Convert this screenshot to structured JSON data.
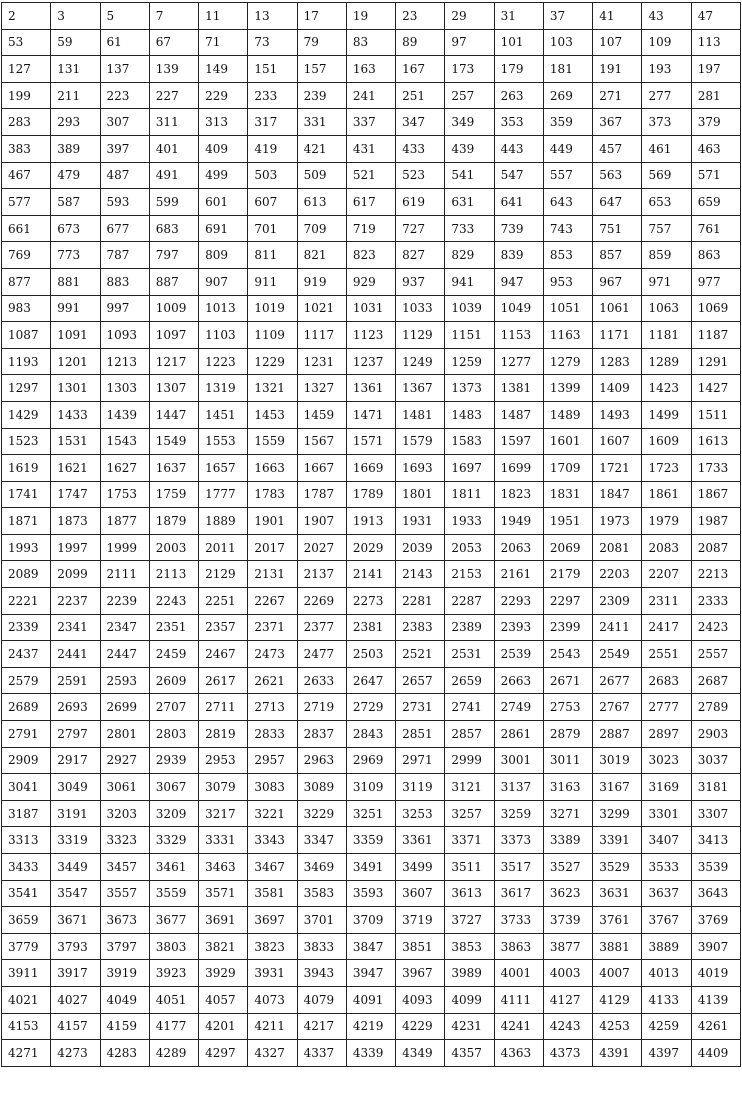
{
  "table": {
    "rows": [
      [
        "2",
        "3",
        "5",
        "7",
        "11",
        "13",
        "17",
        "19",
        "23",
        "29",
        "31",
        "37",
        "41",
        "43",
        "47"
      ],
      [
        "53",
        "59",
        "61",
        "67",
        "71",
        "73",
        "79",
        "83",
        "89",
        "97",
        "101",
        "103",
        "107",
        "109",
        "113"
      ],
      [
        "127",
        "131",
        "137",
        "139",
        "149",
        "151",
        "157",
        "163",
        "167",
        "173",
        "179",
        "181",
        "191",
        "193",
        "197"
      ],
      [
        "199",
        "211",
        "223",
        "227",
        "229",
        "233",
        "239",
        "241",
        "251",
        "257",
        "263",
        "269",
        "271",
        "277",
        "281"
      ],
      [
        "283",
        "293",
        "307",
        "311",
        "313",
        "317",
        "331",
        "337",
        "347",
        "349",
        "353",
        "359",
        "367",
        "373",
        "379"
      ],
      [
        "383",
        "389",
        "397",
        "401",
        "409",
        "419",
        "421",
        "431",
        "433",
        "439",
        "443",
        "449",
        "457",
        "461",
        "463"
      ],
      [
        "467",
        "479",
        "487",
        "491",
        "499",
        "503",
        "509",
        "521",
        "523",
        "541",
        "547",
        "557",
        "563",
        "569",
        "571"
      ],
      [
        "577",
        "587",
        "593",
        "599",
        "601",
        "607",
        "613",
        "617",
        "619",
        "631",
        "641",
        "643",
        "647",
        "653",
        "659"
      ],
      [
        "661",
        "673",
        "677",
        "683",
        "691",
        "701",
        "709",
        "719",
        "727",
        "733",
        "739",
        "743",
        "751",
        "757",
        "761"
      ],
      [
        "769",
        "773",
        "787",
        "797",
        "809",
        "811",
        "821",
        "823",
        "827",
        "829",
        "839",
        "853",
        "857",
        "859",
        "863"
      ],
      [
        "877",
        "881",
        "883",
        "887",
        "907",
        "911",
        "919",
        "929",
        "937",
        "941",
        "947",
        "953",
        "967",
        "971",
        "977"
      ],
      [
        "983",
        "991",
        "997",
        "1009",
        "1013",
        "1019",
        "1021",
        "1031",
        "1033",
        "1039",
        "1049",
        "1051",
        "1061",
        "1063",
        "1069"
      ],
      [
        "1087",
        "1091",
        "1093",
        "1097",
        "1103",
        "1109",
        "1117",
        "1123",
        "1129",
        "1151",
        "1153",
        "1163",
        "1171",
        "1181",
        "1187"
      ],
      [
        "1193",
        "1201",
        "1213",
        "1217",
        "1223",
        "1229",
        "1231",
        "1237",
        "1249",
        "1259",
        "1277",
        "1279",
        "1283",
        "1289",
        "1291"
      ],
      [
        "1297",
        "1301",
        "1303",
        "1307",
        "1319",
        "1321",
        "1327",
        "1361",
        "1367",
        "1373",
        "1381",
        "1399",
        "1409",
        "1423",
        "1427"
      ],
      [
        "1429",
        "1433",
        "1439",
        "1447",
        "1451",
        "1453",
        "1459",
        "1471",
        "1481",
        "1483",
        "1487",
        "1489",
        "1493",
        "1499",
        "1511"
      ],
      [
        "1523",
        "1531",
        "1543",
        "1549",
        "1553",
        "1559",
        "1567",
        "1571",
        "1579",
        "1583",
        "1597",
        "1601",
        "1607",
        "1609",
        "1613"
      ],
      [
        "1619",
        "1621",
        "1627",
        "1637",
        "1657",
        "1663",
        "1667",
        "1669",
        "1693",
        "1697",
        "1699",
        "1709",
        "1721",
        "1723",
        "1733"
      ],
      [
        "1741",
        "1747",
        "1753",
        "1759",
        "1777",
        "1783",
        "1787",
        "1789",
        "1801",
        "1811",
        "1823",
        "1831",
        "1847",
        "1861",
        "1867"
      ],
      [
        "1871",
        "1873",
        "1877",
        "1879",
        "1889",
        "1901",
        "1907",
        "1913",
        "1931",
        "1933",
        "1949",
        "1951",
        "1973",
        "1979",
        "1987"
      ],
      [
        "1993",
        "1997",
        "1999",
        "2003",
        "2011",
        "2017",
        "2027",
        "2029",
        "2039",
        "2053",
        "2063",
        "2069",
        "2081",
        "2083",
        "2087"
      ],
      [
        "2089",
        "2099",
        "2111",
        "2113",
        "2129",
        "2131",
        "2137",
        "2141",
        "2143",
        "2153",
        "2161",
        "2179",
        "2203",
        "2207",
        "2213"
      ],
      [
        "2221",
        "2237",
        "2239",
        "2243",
        "2251",
        "2267",
        "2269",
        "2273",
        "2281",
        "2287",
        "2293",
        "2297",
        "2309",
        "2311",
        "2333"
      ],
      [
        "2339",
        "2341",
        "2347",
        "2351",
        "2357",
        "2371",
        "2377",
        "2381",
        "2383",
        "2389",
        "2393",
        "2399",
        "2411",
        "2417",
        "2423"
      ],
      [
        "2437",
        "2441",
        "2447",
        "2459",
        "2467",
        "2473",
        "2477",
        "2503",
        "2521",
        "2531",
        "2539",
        "2543",
        "2549",
        "2551",
        "2557"
      ],
      [
        "2579",
        "2591",
        "2593",
        "2609",
        "2617",
        "2621",
        "2633",
        "2647",
        "2657",
        "2659",
        "2663",
        "2671",
        "2677",
        "2683",
        "2687"
      ],
      [
        "2689",
        "2693",
        "2699",
        "2707",
        "2711",
        "2713",
        "2719",
        "2729",
        "2731",
        "2741",
        "2749",
        "2753",
        "2767",
        "2777",
        "2789"
      ],
      [
        "2791",
        "2797",
        "2801",
        "2803",
        "2819",
        "2833",
        "2837",
        "2843",
        "2851",
        "2857",
        "2861",
        "2879",
        "2887",
        "2897",
        "2903"
      ],
      [
        "2909",
        "2917",
        "2927",
        "2939",
        "2953",
        "2957",
        "2963",
        "2969",
        "2971",
        "2999",
        "3001",
        "3011",
        "3019",
        "3023",
        "3037"
      ],
      [
        "3041",
        "3049",
        "3061",
        "3067",
        "3079",
        "3083",
        "3089",
        "3109",
        "3119",
        "3121",
        "3137",
        "3163",
        "3167",
        "3169",
        "3181"
      ],
      [
        "3187",
        "3191",
        "3203",
        "3209",
        "3217",
        "3221",
        "3229",
        "3251",
        "3253",
        "3257",
        "3259",
        "3271",
        "3299",
        "3301",
        "3307"
      ],
      [
        "3313",
        "3319",
        "3323",
        "3329",
        "3331",
        "3343",
        "3347",
        "3359",
        "3361",
        "3371",
        "3373",
        "3389",
        "3391",
        "3407",
        "3413"
      ],
      [
        "3433",
        "3449",
        "3457",
        "3461",
        "3463",
        "3467",
        "3469",
        "3491",
        "3499",
        "3511",
        "3517",
        "3527",
        "3529",
        "3533",
        "3539"
      ],
      [
        "3541",
        "3547",
        "3557",
        "3559",
        "3571",
        "3581",
        "3583",
        "3593",
        "3607",
        "3613",
        "3617",
        "3623",
        "3631",
        "3637",
        "3643"
      ],
      [
        "3659",
        "3671",
        "3673",
        "3677",
        "3691",
        "3697",
        "3701",
        "3709",
        "3719",
        "3727",
        "3733",
        "3739",
        "3761",
        "3767",
        "3769"
      ],
      [
        "3779",
        "3793",
        "3797",
        "3803",
        "3821",
        "3823",
        "3833",
        "3847",
        "3851",
        "3853",
        "3863",
        "3877",
        "3881",
        "3889",
        "3907"
      ],
      [
        "3911",
        "3917",
        "3919",
        "3923",
        "3929",
        "3931",
        "3943",
        "3947",
        "3967",
        "3989",
        "4001",
        "4003",
        "4007",
        "4013",
        "4019"
      ],
      [
        "4021",
        "4027",
        "4049",
        "4051",
        "4057",
        "4073",
        "4079",
        "4091",
        "4093",
        "4099",
        "4111",
        "4127",
        "4129",
        "4133",
        "4139"
      ],
      [
        "4153",
        "4157",
        "4159",
        "4177",
        "4201",
        "4211",
        "4217",
        "4219",
        "4229",
        "4231",
        "4241",
        "4243",
        "4253",
        "4259",
        "4261"
      ],
      [
        "4271",
        "4273",
        "4283",
        "4289",
        "4297",
        "4327",
        "4337",
        "4339",
        "4349",
        "4357",
        "4363",
        "4373",
        "4391",
        "4397",
        "4409"
      ]
    ]
  }
}
